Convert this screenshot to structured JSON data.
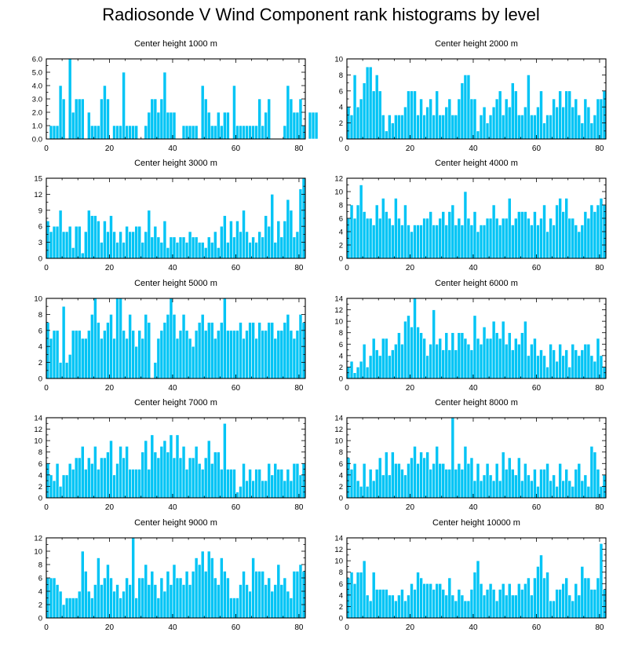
{
  "figure": {
    "title": "Radiosonde V Wind Component rank histograms by level",
    "bar_color": "#00c4f5",
    "bar_edge_color": "#ffffff",
    "axis_color": "#000000"
  },
  "chart_data": [
    {
      "type": "bar",
      "title": "Center height 1000 m",
      "xlim": [
        0,
        82
      ],
      "ylim": [
        0,
        6
      ],
      "xticks": [
        0,
        20,
        40,
        60,
        80
      ],
      "yticks": [
        0,
        1,
        2,
        3,
        4,
        5,
        6
      ],
      "ytick_labels": [
        "0.0",
        "1.0",
        "2.0",
        "3.0",
        "4.0",
        "5.0",
        "6.0"
      ],
      "values": [
        0,
        1,
        1,
        1,
        4,
        3,
        0,
        6,
        2,
        3,
        3,
        3,
        0,
        2,
        1,
        1,
        1,
        3,
        4,
        3,
        0,
        1,
        1,
        1,
        5,
        1,
        1,
        1,
        1,
        0,
        0,
        1,
        2,
        3,
        3,
        2,
        3,
        5,
        2,
        2,
        2,
        0,
        0,
        1,
        1,
        1,
        1,
        1,
        0,
        4,
        3,
        2,
        1,
        1,
        2,
        1,
        2,
        2,
        0,
        4,
        1,
        1,
        1,
        1,
        1,
        1,
        1,
        3,
        1,
        2,
        3,
        0,
        0,
        0,
        0,
        1,
        4,
        3,
        2,
        2,
        3,
        1,
        0,
        2,
        2,
        2
      ]
    },
    {
      "type": "bar",
      "title": "Center height 2000 m",
      "xlim": [
        0,
        82
      ],
      "ylim": [
        0,
        10
      ],
      "xticks": [
        0,
        20,
        40,
        60,
        80
      ],
      "yticks": [
        0,
        2,
        4,
        6,
        8,
        10
      ],
      "values": [
        4,
        3,
        8,
        4,
        5,
        7,
        9,
        9,
        6,
        8,
        6,
        3,
        1,
        3,
        2,
        3,
        3,
        3,
        4,
        6,
        6,
        6,
        3,
        5,
        3,
        4,
        5,
        3,
        6,
        3,
        3,
        4,
        5,
        3,
        3,
        5,
        7,
        8,
        8,
        5,
        5,
        1,
        3,
        4,
        2,
        3,
        4,
        5,
        6,
        3,
        5,
        4,
        7,
        6,
        3,
        3,
        4,
        8,
        3,
        3,
        4,
        6,
        2,
        3,
        3,
        5,
        4,
        6,
        4,
        6,
        6,
        4,
        5,
        3,
        2,
        5,
        4,
        2,
        3,
        5,
        5,
        6
      ]
    },
    {
      "type": "bar",
      "title": "Center height 3000 m",
      "xlim": [
        0,
        82
      ],
      "ylim": [
        0,
        15
      ],
      "xticks": [
        0,
        20,
        40,
        60,
        80
      ],
      "yticks": [
        0,
        3,
        6,
        9,
        12,
        15
      ],
      "values": [
        7,
        5,
        6,
        6,
        9,
        5,
        5,
        6,
        2,
        6,
        6,
        1,
        5,
        9,
        8,
        8,
        7,
        3,
        7,
        5,
        8,
        5,
        3,
        5,
        3,
        6,
        5,
        5,
        6,
        6,
        3,
        5,
        9,
        4,
        6,
        4,
        3,
        7,
        2,
        4,
        4,
        3,
        4,
        4,
        3,
        5,
        4,
        4,
        3,
        3,
        2,
        4,
        3,
        5,
        2,
        6,
        8,
        3,
        7,
        4,
        7,
        5,
        9,
        5,
        3,
        4,
        3,
        5,
        4,
        8,
        6,
        12,
        3,
        7,
        4,
        7,
        11,
        9,
        4,
        5,
        13,
        15
      ]
    },
    {
      "type": "bar",
      "title": "Center height 4000 m",
      "xlim": [
        0,
        82
      ],
      "ylim": [
        0,
        12
      ],
      "xticks": [
        0,
        20,
        40,
        60,
        80
      ],
      "yticks": [
        0,
        2,
        4,
        6,
        8,
        10,
        12
      ],
      "values": [
        6,
        8,
        6,
        8,
        11,
        7,
        6,
        6,
        5,
        8,
        6,
        9,
        7,
        6,
        5,
        9,
        6,
        5,
        8,
        5,
        4,
        5,
        5,
        5,
        6,
        6,
        7,
        5,
        5,
        6,
        7,
        5,
        7,
        8,
        5,
        6,
        5,
        10,
        6,
        5,
        7,
        4,
        5,
        5,
        6,
        6,
        8,
        6,
        5,
        6,
        6,
        9,
        5,
        6,
        7,
        7,
        7,
        6,
        5,
        7,
        5,
        6,
        8,
        4,
        6,
        5,
        8,
        9,
        7,
        9,
        6,
        6,
        5,
        4,
        5,
        7,
        6,
        8,
        7,
        8,
        9,
        8
      ]
    },
    {
      "type": "bar",
      "title": "Center height 5000 m",
      "xlim": [
        0,
        82
      ],
      "ylim": [
        0,
        10
      ],
      "xticks": [
        0,
        20,
        40,
        60,
        80
      ],
      "yticks": [
        0,
        2,
        4,
        6,
        8,
        10
      ],
      "values": [
        7,
        5,
        6,
        6,
        2,
        9,
        2,
        3,
        6,
        6,
        6,
        5,
        5,
        6,
        8,
        10,
        7,
        5,
        6,
        7,
        8,
        5,
        10,
        10,
        6,
        5,
        8,
        6,
        4,
        6,
        5,
        8,
        7,
        0,
        2,
        5,
        6,
        7,
        8,
        10,
        8,
        5,
        6,
        8,
        6,
        5,
        4,
        6,
        7,
        8,
        6,
        7,
        7,
        5,
        6,
        7,
        10,
        6,
        6,
        6,
        6,
        7,
        5,
        6,
        7,
        7,
        5,
        7,
        6,
        6,
        7,
        7,
        5,
        6,
        6,
        7,
        8,
        6,
        5,
        6,
        8,
        7
      ]
    },
    {
      "type": "bar",
      "title": "Center height 6000 m",
      "xlim": [
        0,
        82
      ],
      "ylim": [
        0,
        14
      ],
      "xticks": [
        0,
        20,
        40,
        60,
        80
      ],
      "yticks": [
        0,
        2,
        4,
        6,
        8,
        10,
        12,
        14
      ],
      "values": [
        2,
        3,
        1,
        2,
        3,
        6,
        2,
        4,
        7,
        5,
        4,
        7,
        7,
        4,
        5,
        6,
        8,
        6,
        10,
        11,
        9,
        14,
        9,
        8,
        7,
        4,
        6,
        12,
        6,
        7,
        5,
        8,
        5,
        8,
        5,
        8,
        8,
        7,
        6,
        5,
        11,
        7,
        6,
        9,
        7,
        7,
        10,
        8,
        7,
        10,
        6,
        8,
        5,
        7,
        6,
        8,
        10,
        4,
        6,
        7,
        4,
        5,
        4,
        2,
        6,
        5,
        3,
        6,
        4,
        5,
        2,
        6,
        5,
        4,
        5,
        6,
        6,
        4,
        3,
        7,
        4,
        2
      ]
    },
    {
      "type": "bar",
      "title": "Center height 7000 m",
      "xlim": [
        0,
        82
      ],
      "ylim": [
        0,
        14
      ],
      "xticks": [
        0,
        20,
        40,
        60,
        80
      ],
      "yticks": [
        0,
        2,
        4,
        6,
        8,
        10,
        12,
        14
      ],
      "values": [
        6,
        4,
        3,
        6,
        2,
        4,
        4,
        6,
        5,
        7,
        7,
        9,
        5,
        7,
        6,
        9,
        5,
        7,
        7,
        8,
        10,
        4,
        6,
        9,
        7,
        9,
        5,
        5,
        5,
        5,
        8,
        10,
        5,
        11,
        8,
        7,
        9,
        10,
        8,
        11,
        7,
        11,
        7,
        9,
        5,
        7,
        7,
        9,
        6,
        5,
        7,
        10,
        6,
        8,
        8,
        5,
        13,
        5,
        5,
        5,
        1,
        2,
        6,
        3,
        5,
        3,
        5,
        5,
        3,
        3,
        6,
        4,
        6,
        5,
        5,
        3,
        5,
        3,
        6,
        6,
        4,
        6
      ]
    },
    {
      "type": "bar",
      "title": "Center height 8000 m",
      "xlim": [
        0,
        82
      ],
      "ylim": [
        0,
        14
      ],
      "xticks": [
        0,
        20,
        40,
        60,
        80
      ],
      "yticks": [
        0,
        2,
        4,
        6,
        8,
        10,
        12,
        14
      ],
      "values": [
        7,
        5,
        6,
        3,
        2,
        6,
        2,
        5,
        3,
        5,
        7,
        4,
        8,
        4,
        8,
        6,
        6,
        5,
        4,
        6,
        7,
        9,
        6,
        8,
        7,
        8,
        5,
        6,
        9,
        6,
        6,
        5,
        5,
        14,
        5,
        6,
        5,
        9,
        6,
        7,
        3,
        6,
        3,
        4,
        6,
        4,
        3,
        6,
        3,
        8,
        5,
        7,
        5,
        4,
        7,
        3,
        6,
        4,
        3,
        5,
        2,
        5,
        5,
        6,
        3,
        4,
        2,
        6,
        3,
        5,
        3,
        2,
        5,
        6,
        3,
        4,
        2,
        9,
        8,
        5,
        2,
        4
      ]
    },
    {
      "type": "bar",
      "title": "Center height 9000 m",
      "xlim": [
        0,
        82
      ],
      "ylim": [
        0,
        12
      ],
      "xticks": [
        0,
        20,
        40,
        60,
        80
      ],
      "yticks": [
        0,
        2,
        4,
        6,
        8,
        10,
        12
      ],
      "values": [
        6,
        6,
        6,
        5,
        4,
        2,
        3,
        3,
        3,
        3,
        4,
        10,
        7,
        4,
        3,
        5,
        9,
        5,
        6,
        8,
        6,
        4,
        5,
        3,
        4,
        6,
        5,
        12,
        3,
        6,
        6,
        8,
        5,
        7,
        5,
        3,
        6,
        4,
        7,
        5,
        8,
        6,
        6,
        5,
        7,
        5,
        7,
        9,
        8,
        10,
        7,
        10,
        9,
        6,
        5,
        9,
        7,
        6,
        3,
        3,
        3,
        5,
        7,
        5,
        4,
        9,
        7,
        7,
        7,
        5,
        6,
        4,
        5,
        8,
        5,
        6,
        4,
        3,
        7,
        7,
        8,
        7
      ]
    },
    {
      "type": "bar",
      "title": "Center height 10000 m",
      "xlim": [
        0,
        82
      ],
      "ylim": [
        0,
        14
      ],
      "xticks": [
        0,
        20,
        40,
        60,
        80
      ],
      "yticks": [
        0,
        2,
        4,
        6,
        8,
        10,
        12,
        14
      ],
      "values": [
        7,
        8,
        6,
        8,
        8,
        10,
        4,
        3,
        8,
        5,
        5,
        5,
        5,
        4,
        4,
        3,
        4,
        5,
        3,
        4,
        6,
        5,
        8,
        7,
        6,
        6,
        6,
        5,
        6,
        6,
        5,
        4,
        7,
        4,
        3,
        5,
        4,
        3,
        3,
        5,
        8,
        10,
        6,
        4,
        5,
        6,
        5,
        3,
        5,
        6,
        4,
        6,
        4,
        4,
        6,
        5,
        6,
        7,
        4,
        7,
        9,
        11,
        7,
        8,
        3,
        3,
        5,
        5,
        6,
        7,
        4,
        3,
        6,
        4,
        9,
        7,
        7,
        5,
        5,
        7,
        13,
        5
      ]
    }
  ]
}
